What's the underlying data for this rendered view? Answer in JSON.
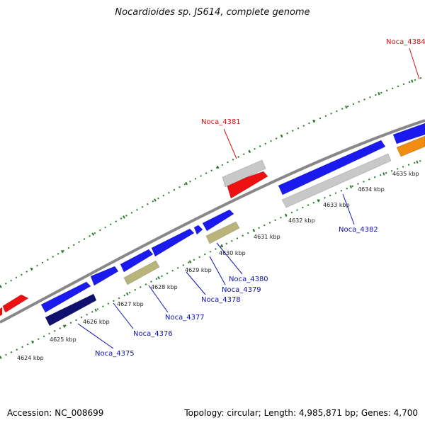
{
  "title": "Nocardioides sp. JS614, complete genome",
  "footer": {
    "accession": "Accession: NC_008699",
    "summary": "Topology: circular; Length: 4,985,871 bp; Genes: 4,700"
  },
  "colors": {
    "backbone": "#888888",
    "tick": "#2a7a2a",
    "gene_blue": "#1a1aee",
    "gene_navy": "#10106e",
    "gene_red": "#ee1111",
    "gene_grey": "#c8c8c8",
    "gene_olive": "#b9b57a",
    "gene_orange": "#f08c10",
    "label_blue": "#1010b0",
    "label_red": "#dd1111"
  },
  "kbp_ticks": [
    {
      "label": "4624 kbp"
    },
    {
      "label": "4625 kbp"
    },
    {
      "label": "4626 kbp"
    },
    {
      "label": "4627 kbp"
    },
    {
      "label": "4628 kbp"
    },
    {
      "label": "4629 kbp"
    },
    {
      "label": "4630 kbp"
    },
    {
      "label": "4631 kbp"
    },
    {
      "label": "4632 kbp"
    },
    {
      "label": "4633 kbp"
    },
    {
      "label": "4634 kbp"
    },
    {
      "label": "4635 kbp"
    }
  ],
  "gene_labels": [
    {
      "text": "Noca_4375",
      "color": "blue"
    },
    {
      "text": "Noca_4376",
      "color": "blue"
    },
    {
      "text": "Noca_4377",
      "color": "blue"
    },
    {
      "text": "Noca_4378",
      "color": "blue"
    },
    {
      "text": "Noca_4379",
      "color": "blue"
    },
    {
      "text": "Noca_4380",
      "color": "blue"
    },
    {
      "text": "Noca_4381",
      "color": "red"
    },
    {
      "text": "Noca_4382",
      "color": "blue"
    },
    {
      "text": "Noca_4384",
      "color": "red"
    }
  ]
}
